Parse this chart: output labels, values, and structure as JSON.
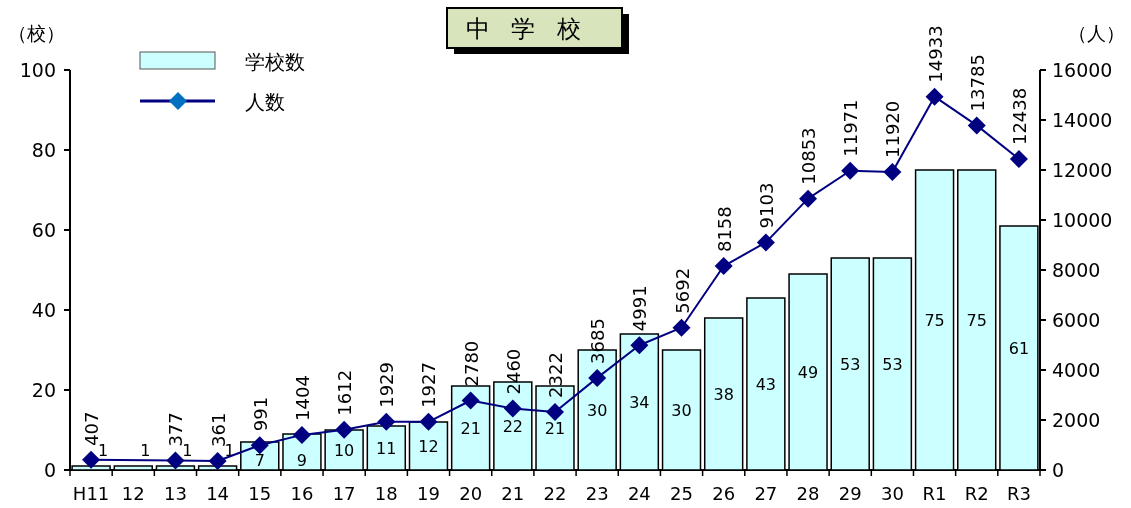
{
  "chart_data": {
    "type": "bar",
    "title": "中学校",
    "ylabel": "（校）",
    "y2label": "（人）",
    "categories": [
      "H11",
      "12",
      "13",
      "14",
      "15",
      "16",
      "17",
      "18",
      "19",
      "20",
      "21",
      "22",
      "23",
      "24",
      "25",
      "26",
      "27",
      "28",
      "29",
      "30",
      "R1",
      "R2",
      "R3"
    ],
    "series": [
      {
        "name": "学校数",
        "color": "#ccffff",
        "values": [
          1,
          1,
          1,
          1,
          7,
          9,
          10,
          11,
          12,
          21,
          22,
          21,
          30,
          34,
          30,
          38,
          43,
          49,
          53,
          53,
          75,
          75,
          61
        ]
      },
      {
        "name": "人数",
        "type": "line",
        "axis": "y2",
        "color": "#000080",
        "values": [
          407,
          null,
          377,
          361,
          991,
          1404,
          1612,
          1929,
          1927,
          2780,
          2460,
          2322,
          3685,
          4991,
          5692,
          8158,
          9103,
          10853,
          11971,
          11920,
          14933,
          13785,
          12438
        ]
      }
    ],
    "ylim": [
      0,
      100
    ],
    "yticks": [
      0,
      20,
      40,
      60,
      80,
      100
    ],
    "y2lim": [
      0,
      16000
    ],
    "y2ticks": [
      0,
      2000,
      4000,
      6000,
      8000,
      10000,
      12000,
      14000,
      16000
    ],
    "legend": "top left",
    "marker": "diamond",
    "data_labels": true
  }
}
